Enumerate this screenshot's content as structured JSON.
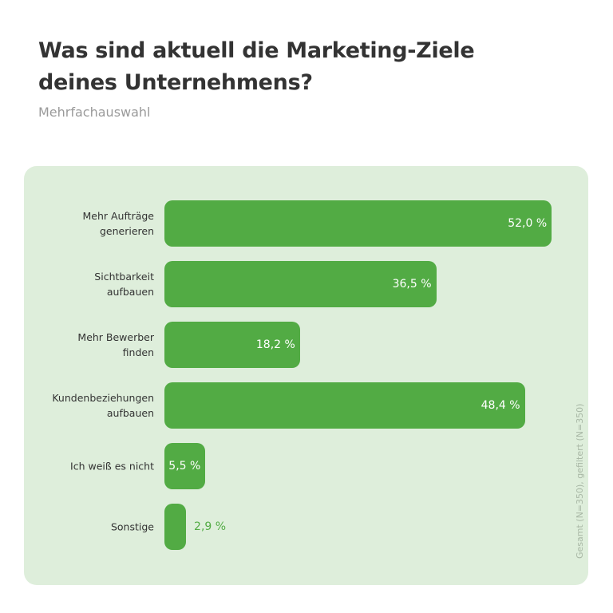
{
  "chart_data": {
    "type": "bar",
    "orientation": "horizontal",
    "title": "Was sind aktuell die Marketing-Ziele deines Unternehmens?",
    "subtitle": "Mehrfachauswahl",
    "note": "Gesamt (N=350), gefiltert (N=350)",
    "categories": [
      "Mehr Aufträge\ngenerieren",
      "Sichtbarkeit\naufbauen",
      "Mehr Bewerber\nfinden",
      "Kundenbeziehungen\naufbauen",
      "Ich weiß es nicht",
      "Sonstige"
    ],
    "values": [
      52.0,
      36.5,
      18.2,
      48.4,
      5.5,
      2.9
    ],
    "value_labels": [
      "52,0 %",
      "36,5 %",
      "18,2 %",
      "48,4 %",
      "5,5 %",
      "2,9 %"
    ],
    "color": "#52ab44"
  }
}
